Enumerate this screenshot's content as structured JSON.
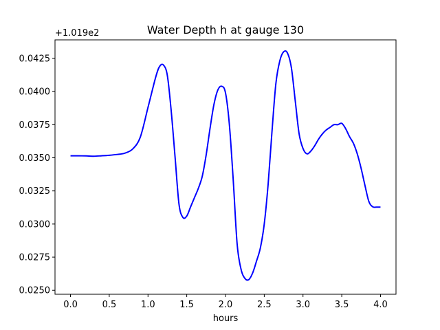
{
  "chart_data": {
    "type": "line",
    "title": "Water Depth h at gauge 130",
    "xlabel": "hours",
    "ylabel": "",
    "y_offset_label": "+1.019e2",
    "xlim": [
      -0.2,
      4.2
    ],
    "ylim": [
      0.0247,
      0.0439
    ],
    "grid": false,
    "legend": "none",
    "x_ticks": [
      0.0,
      0.5,
      1.0,
      1.5,
      2.0,
      2.5,
      3.0,
      3.5,
      4.0
    ],
    "x_tick_labels": [
      "0.0",
      "0.5",
      "1.0",
      "1.5",
      "2.0",
      "2.5",
      "3.0",
      "3.5",
      "4.0"
    ],
    "y_ticks": [
      0.025,
      0.0275,
      0.03,
      0.0325,
      0.035,
      0.0375,
      0.04,
      0.0425
    ],
    "y_tick_labels": [
      "0.0250",
      "0.0275",
      "0.0300",
      "0.0325",
      "0.0350",
      "0.0375",
      "0.0400",
      "0.0425"
    ],
    "series": [
      {
        "color": "#0000ff",
        "x": [
          0.0,
          0.1,
          0.2,
          0.3,
          0.4,
          0.5,
          0.6,
          0.7,
          0.8,
          0.9,
          1.0,
          1.1,
          1.15,
          1.2,
          1.25,
          1.3,
          1.35,
          1.4,
          1.45,
          1.5,
          1.55,
          1.6,
          1.65,
          1.7,
          1.75,
          1.8,
          1.85,
          1.9,
          1.95,
          2.0,
          2.05,
          2.1,
          2.15,
          2.2,
          2.25,
          2.3,
          2.35,
          2.4,
          2.45,
          2.5,
          2.55,
          2.6,
          2.65,
          2.7,
          2.75,
          2.8,
          2.85,
          2.9,
          2.95,
          3.0,
          3.05,
          3.1,
          3.15,
          3.2,
          3.25,
          3.3,
          3.35,
          3.4,
          3.45,
          3.5,
          3.55,
          3.6,
          3.65,
          3.7,
          3.75,
          3.8,
          3.85,
          3.9,
          3.95,
          4.0
        ],
        "y": [
          0.03515,
          0.03515,
          0.03514,
          0.03512,
          0.03515,
          0.03519,
          0.03525,
          0.03535,
          0.03565,
          0.03655,
          0.0388,
          0.0411,
          0.0419,
          0.042,
          0.0412,
          0.0385,
          0.035,
          0.0315,
          0.0305,
          0.0306,
          0.0313,
          0.032,
          0.0327,
          0.0336,
          0.0352,
          0.0372,
          0.039,
          0.0401,
          0.0404,
          0.0399,
          0.0375,
          0.0333,
          0.0285,
          0.0266,
          0.0259,
          0.0258,
          0.0263,
          0.0272,
          0.0282,
          0.03,
          0.033,
          0.037,
          0.0406,
          0.0423,
          0.043,
          0.0429,
          0.0418,
          0.0393,
          0.0368,
          0.0357,
          0.0353,
          0.0355,
          0.0359,
          0.0364,
          0.0368,
          0.0371,
          0.0373,
          0.0375,
          0.0375,
          0.0376,
          0.0372,
          0.0366,
          0.0361,
          0.0353,
          0.0342,
          0.0329,
          0.0317,
          0.0313,
          0.03128,
          0.03128
        ]
      }
    ]
  }
}
